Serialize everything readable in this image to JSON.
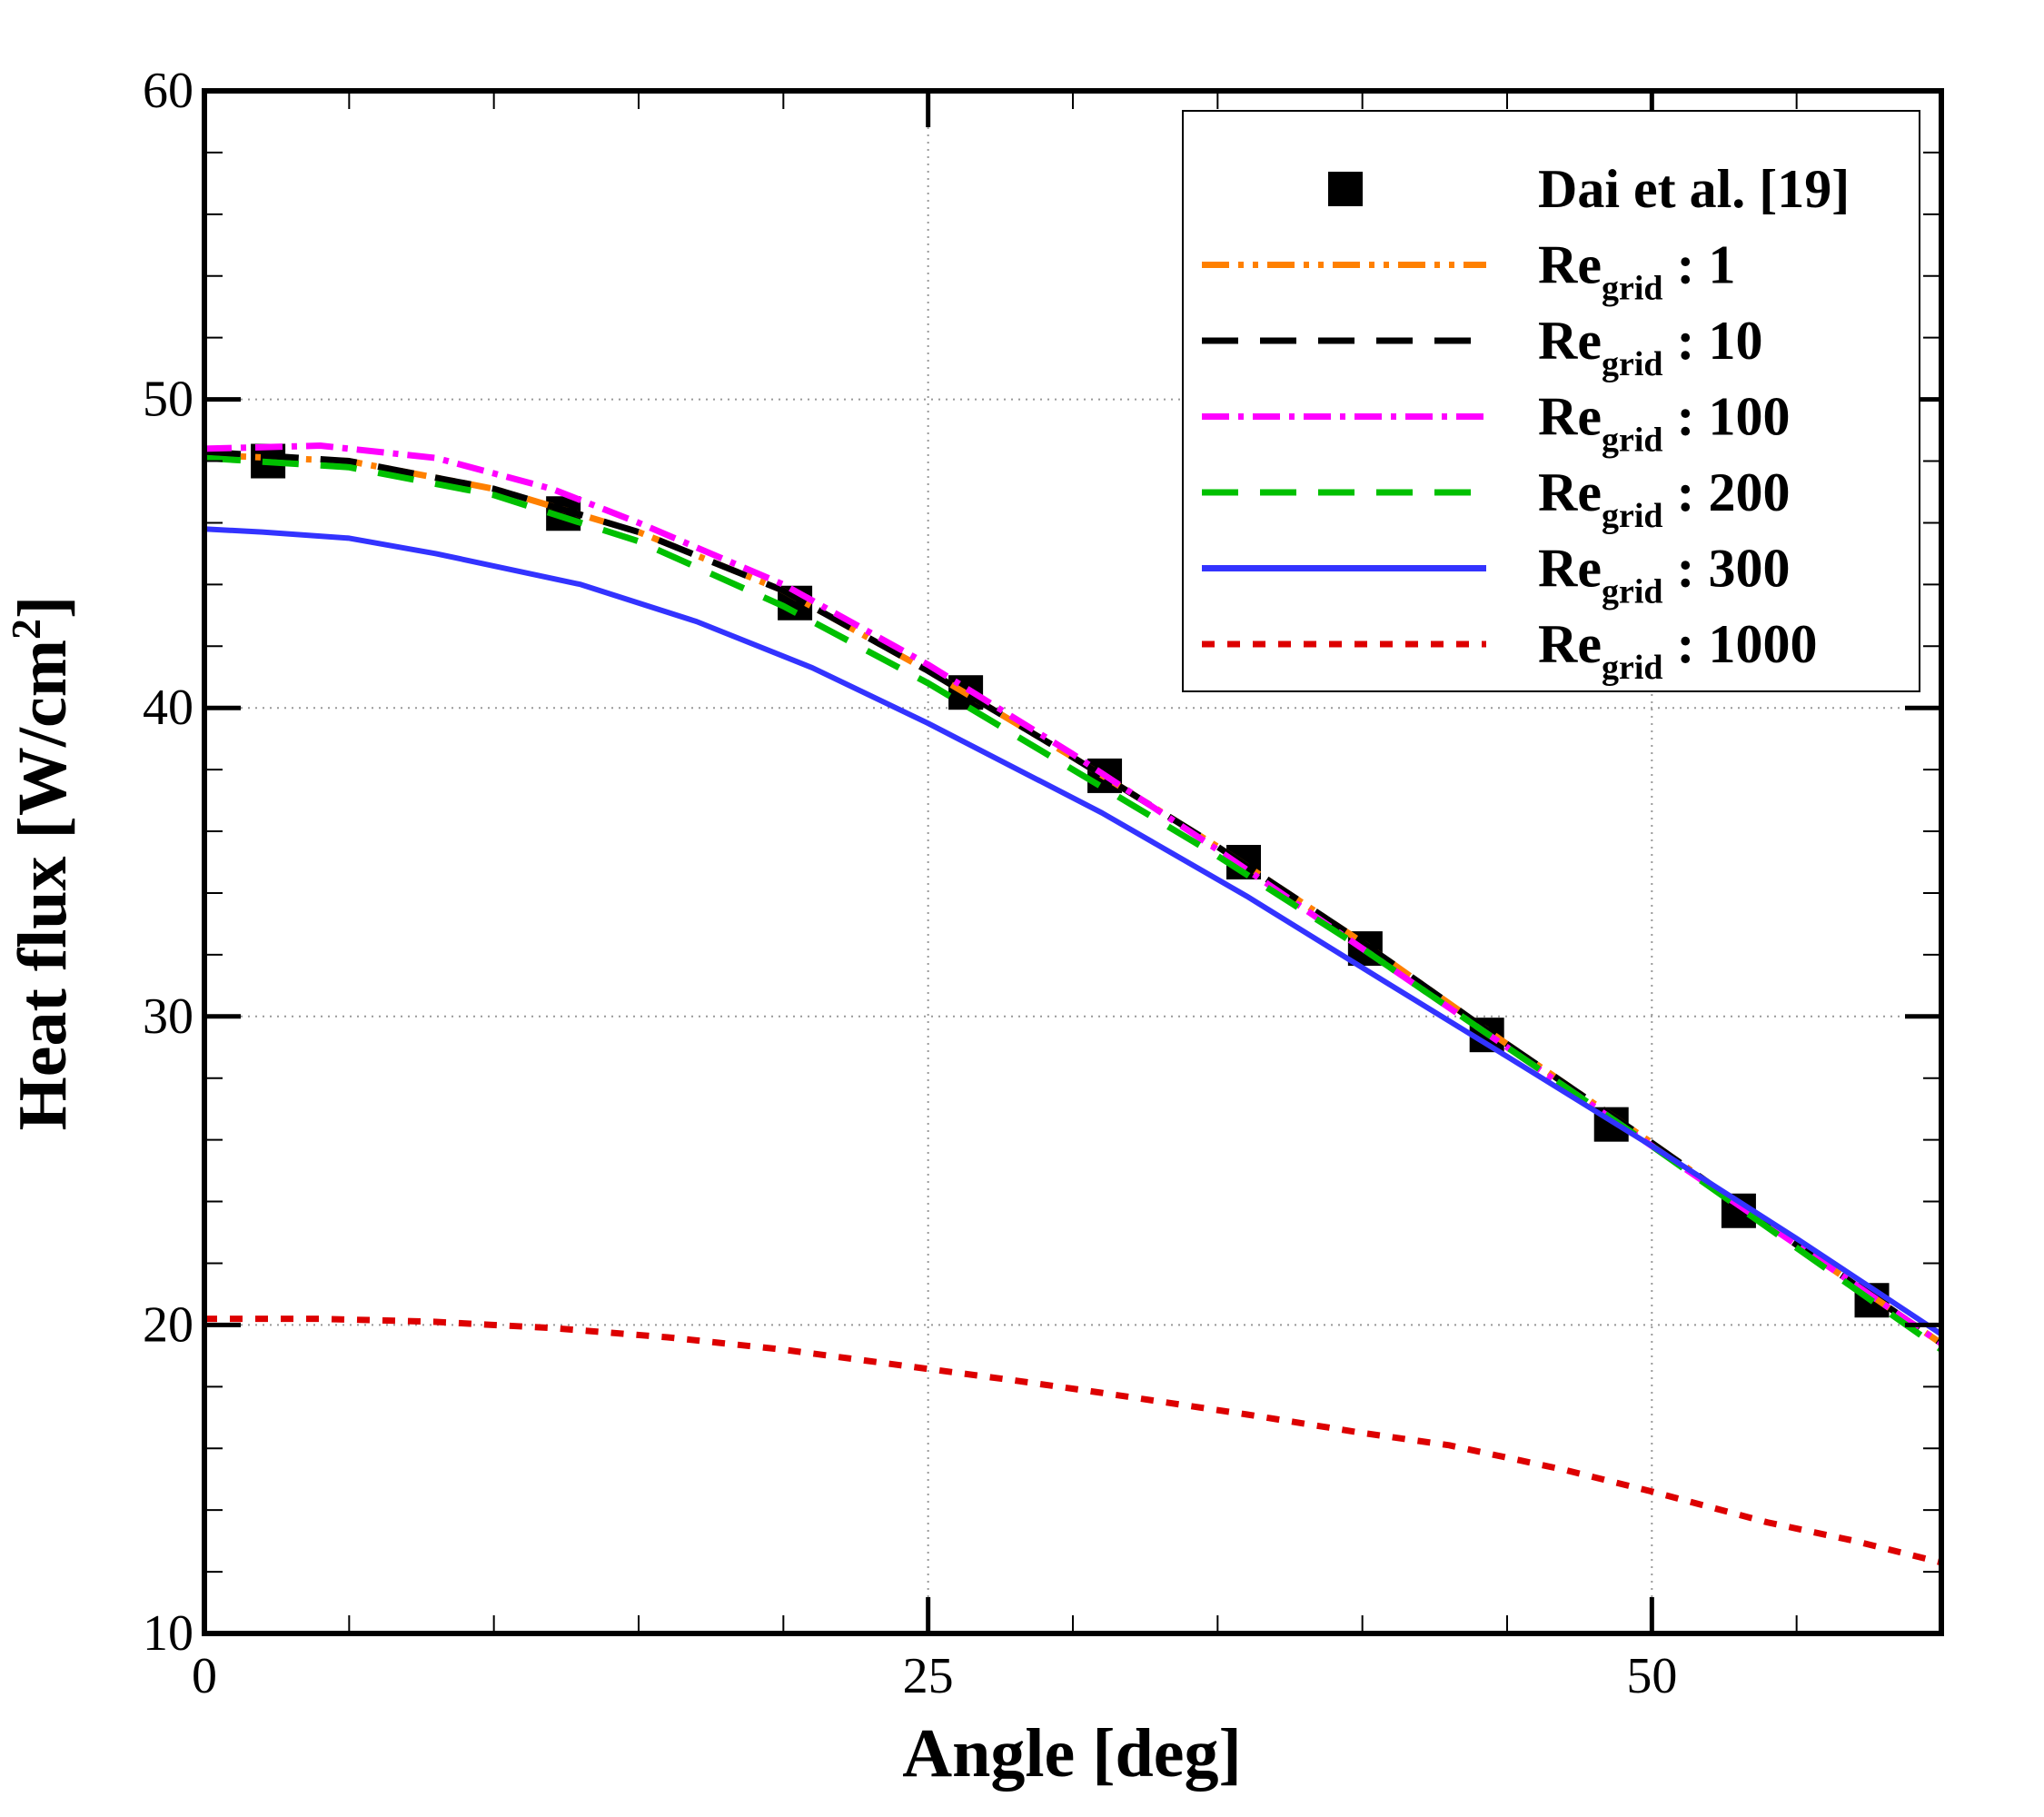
{
  "chart_data": {
    "type": "line",
    "xlabel": "Angle [deg]",
    "ylabel_main": "Heat flux [W/cm",
    "ylabel_sup": "2",
    "ylabel_end": "]",
    "xlim": [
      0,
      60
    ],
    "ylim": [
      10,
      60
    ],
    "x_major_ticks": [
      0,
      25,
      50
    ],
    "x_tick_labels": [
      "0",
      "25",
      "50"
    ],
    "x_minor_step": 5,
    "y_major_ticks": [
      10,
      20,
      30,
      40,
      50,
      60
    ],
    "y_tick_labels": [
      "10",
      "20",
      "30",
      "40",
      "50",
      "60"
    ],
    "y_minor_step": 2,
    "grid": true,
    "legend_placement": "top-right",
    "series": [
      {
        "name": "Dai et al. [19]",
        "legend_main": "Dai et al. [19]",
        "legend_sub": "",
        "legend_tail": "",
        "style": "marker",
        "color": "#000000",
        "x": [
          2.2,
          12.4,
          20.4,
          26.3,
          31.1,
          35.9,
          40.1,
          44.3,
          48.6,
          53.0,
          57.6
        ],
        "y": [
          48.0,
          46.3,
          43.4,
          40.5,
          37.8,
          35.0,
          32.2,
          29.4,
          26.5,
          23.7,
          20.8
        ]
      },
      {
        "name": "Re_grid : 1",
        "legend_main": "Re",
        "legend_sub": "grid",
        "legend_tail": " : 1",
        "style": "dashdotdot",
        "color": "#ff8000",
        "x": [
          0,
          5,
          10,
          15,
          20,
          25,
          30,
          35,
          40,
          45,
          50,
          55,
          60
        ],
        "y": [
          48.2,
          48.0,
          47.1,
          45.7,
          43.8,
          41.2,
          38.4,
          35.5,
          32.4,
          29.1,
          25.9,
          22.6,
          19.4
        ]
      },
      {
        "name": "Re_grid : 10",
        "legend_main": "Re",
        "legend_sub": "grid",
        "legend_tail": " : 10",
        "style": "dash",
        "color": "#000000",
        "x": [
          0,
          5,
          10,
          15,
          20,
          25,
          30,
          35,
          40,
          45,
          50,
          55,
          60
        ],
        "y": [
          48.3,
          48.0,
          47.1,
          45.7,
          43.8,
          41.2,
          38.4,
          35.5,
          32.4,
          29.1,
          25.9,
          22.6,
          19.4
        ]
      },
      {
        "name": "Re_grid : 100",
        "legend_main": "Re",
        "legend_sub": "grid",
        "legend_tail": " : 100",
        "style": "dashdot",
        "color": "#ff00ff",
        "x": [
          0,
          4,
          8,
          12,
          15,
          20,
          25,
          30,
          35,
          40,
          45,
          50,
          55,
          60
        ],
        "y": [
          48.4,
          48.5,
          48.1,
          47.1,
          46.0,
          44.0,
          41.4,
          38.5,
          35.4,
          32.2,
          29.0,
          25.8,
          22.6,
          19.4
        ]
      },
      {
        "name": "Re_grid : 200",
        "legend_main": "Re",
        "legend_sub": "grid",
        "legend_tail": " : 200",
        "style": "dash",
        "color": "#00c000",
        "x": [
          0,
          5,
          10,
          15,
          20,
          25,
          30,
          35,
          40,
          45,
          50,
          55,
          60
        ],
        "y": [
          48.1,
          47.8,
          46.9,
          45.4,
          43.3,
          40.8,
          38.0,
          35.2,
          32.2,
          29.0,
          25.8,
          22.5,
          19.2
        ]
      },
      {
        "name": "Re_grid : 300",
        "legend_main": "Re",
        "legend_sub": "grid",
        "legend_tail": " : 300",
        "style": "solid",
        "color": "#3333ff",
        "x": [
          0,
          2,
          5,
          8,
          13,
          17,
          21,
          25,
          31,
          36,
          41,
          45,
          50,
          55,
          60
        ],
        "y": [
          45.8,
          45.7,
          45.5,
          45.0,
          44.0,
          42.8,
          41.3,
          39.5,
          36.6,
          33.9,
          31.0,
          28.7,
          25.8,
          22.8,
          19.7
        ]
      },
      {
        "name": "Re_grid : 1000",
        "legend_main": "Re",
        "legend_sub": "grid",
        "legend_tail": " : 1000",
        "style": "dot",
        "color": "#dd0000",
        "x": [
          0,
          4,
          8,
          12,
          16,
          20,
          24,
          28,
          31,
          36,
          40,
          43,
          47,
          50,
          54,
          57,
          60
        ],
        "y": [
          20.2,
          20.2,
          20.1,
          19.9,
          19.6,
          19.2,
          18.7,
          18.2,
          17.8,
          17.1,
          16.5,
          16.1,
          15.3,
          14.6,
          13.6,
          13.0,
          12.3
        ]
      }
    ]
  }
}
